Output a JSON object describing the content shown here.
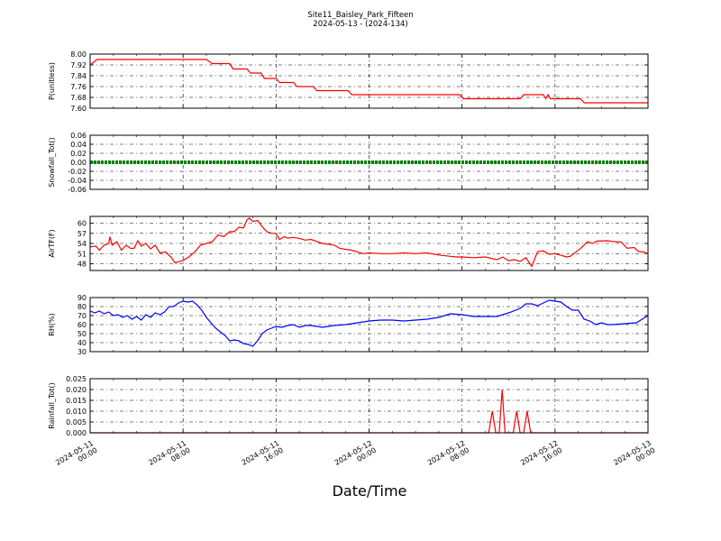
{
  "title_line1": "Site11_Baisley_Park_Fifteen",
  "title_line2": "2024-05-13 - (2024-134)",
  "xlabel": "Date/Time",
  "x_ticks": [
    {
      "t": 0,
      "line1": "2024-05-11",
      "line2": "00:00"
    },
    {
      "t": 8,
      "line1": "2024-05-11",
      "line2": "08:00"
    },
    {
      "t": 16,
      "line1": "2024-05-11",
      "line2": "16:00"
    },
    {
      "t": 24,
      "line1": "2024-05-12",
      "line2": "00:00"
    },
    {
      "t": 32,
      "line1": "2024-05-12",
      "line2": "08:00"
    },
    {
      "t": 40,
      "line1": "2024-05-12",
      "line2": "16:00"
    },
    {
      "t": 48,
      "line1": "2024-05-13",
      "line2": "00:00"
    }
  ],
  "colors": {
    "red": "#ff0000",
    "green": "#008000",
    "blue": "#0000ff"
  },
  "chart_data": [
    {
      "type": "line",
      "ylabel": "P(unitless)",
      "ylim": [
        7.6,
        8.0
      ],
      "yticks": [
        "7.60",
        "7.68",
        "7.76",
        "7.84",
        "7.92",
        "8.00"
      ],
      "series": [
        {
          "color": "#ff0000",
          "points": [
            [
              0,
              7.92
            ],
            [
              0.6,
              7.96
            ],
            [
              4,
              7.96
            ],
            [
              8,
              7.96
            ],
            [
              10,
              7.96
            ],
            [
              10.5,
              7.93
            ],
            [
              12,
              7.93
            ],
            [
              12.3,
              7.89
            ],
            [
              13.5,
              7.89
            ],
            [
              13.8,
              7.86
            ],
            [
              14.7,
              7.86
            ],
            [
              15,
              7.82
            ],
            [
              16,
              7.82
            ],
            [
              16.3,
              7.79
            ],
            [
              17.5,
              7.79
            ],
            [
              17.8,
              7.76
            ],
            [
              19.2,
              7.76
            ],
            [
              19.5,
              7.73
            ],
            [
              22.2,
              7.73
            ],
            [
              22.5,
              7.7
            ],
            [
              27,
              7.7
            ],
            [
              31,
              7.7
            ],
            [
              31.8,
              7.7
            ],
            [
              32.1,
              7.67
            ],
            [
              37,
              7.67
            ],
            [
              37.3,
              7.7
            ],
            [
              39,
              7.7
            ],
            [
              39.2,
              7.67
            ],
            [
              39.4,
              7.7
            ],
            [
              39.6,
              7.67
            ],
            [
              42.2,
              7.67
            ],
            [
              42.5,
              7.64
            ],
            [
              48,
              7.64
            ]
          ]
        }
      ]
    },
    {
      "type": "line",
      "ylabel": "Snowfall_Tot()",
      "ylim": [
        -0.06,
        0.06
      ],
      "yticks": [
        "-0.06",
        "-0.04",
        "-0.02",
        "0.00",
        "0.02",
        "0.04",
        "0.06"
      ],
      "series": [
        {
          "color": "#008000",
          "points": [
            [
              0,
              0
            ],
            [
              48,
              0
            ]
          ]
        }
      ]
    },
    {
      "type": "line",
      "ylabel": "AirTF(F)",
      "ylim": [
        46,
        62
      ],
      "yticks": [
        "48",
        "51",
        "54",
        "57",
        "60"
      ],
      "series": [
        {
          "color": "#ff0000",
          "points": [
            [
              0,
              53
            ],
            [
              0.5,
              53.2
            ],
            [
              0.8,
              52
            ],
            [
              1.2,
              53.5
            ],
            [
              1.6,
              54
            ],
            [
              1.7,
              56
            ],
            [
              1.9,
              53.5
            ],
            [
              2.3,
              54.5
            ],
            [
              2.7,
              52
            ],
            [
              3.1,
              53.5
            ],
            [
              3.5,
              52.5
            ],
            [
              3.8,
              52.6
            ],
            [
              4.1,
              54.8
            ],
            [
              4.4,
              53.2
            ],
            [
              4.8,
              54
            ],
            [
              5.2,
              52.4
            ],
            [
              5.6,
              53.5
            ],
            [
              6,
              51.2
            ],
            [
              6.5,
              51.5
            ],
            [
              7,
              49.8
            ],
            [
              7.3,
              48.3
            ],
            [
              8,
              49
            ],
            [
              8.5,
              50
            ],
            [
              9,
              51.5
            ],
            [
              9.5,
              53.5
            ],
            [
              10,
              54
            ],
            [
              10.5,
              54.5
            ],
            [
              11,
              56.5
            ],
            [
              11.5,
              56
            ],
            [
              12,
              57.5
            ],
            [
              12.4,
              57.5
            ],
            [
              12.8,
              58.8
            ],
            [
              13.2,
              58.6
            ],
            [
              13.5,
              61
            ],
            [
              13.7,
              61.5
            ],
            [
              14,
              60.5
            ],
            [
              14.4,
              60.8
            ],
            [
              14.8,
              59
            ],
            [
              15.2,
              57.5
            ],
            [
              15.6,
              57
            ],
            [
              16,
              57
            ],
            [
              16.3,
              55.2
            ],
            [
              16.7,
              56
            ],
            [
              17,
              55.6
            ],
            [
              17.5,
              55.8
            ],
            [
              18,
              55.5
            ],
            [
              18.5,
              55
            ],
            [
              19,
              55.2
            ],
            [
              19.5,
              54.6
            ],
            [
              20,
              54
            ],
            [
              21,
              53.5
            ],
            [
              21.5,
              52.5
            ],
            [
              22.5,
              52
            ],
            [
              23.5,
              51
            ],
            [
              24,
              51.2
            ],
            [
              25,
              51
            ],
            [
              26,
              51
            ],
            [
              27,
              51.2
            ],
            [
              28,
              51
            ],
            [
              29,
              51.2
            ],
            [
              30,
              50.6
            ],
            [
              31,
              50.2
            ],
            [
              31.5,
              50
            ],
            [
              32,
              50
            ],
            [
              33,
              49.8
            ],
            [
              34,
              50
            ],
            [
              35,
              49.2
            ],
            [
              35.5,
              50
            ],
            [
              36,
              48.9
            ],
            [
              36.5,
              49.2
            ],
            [
              37,
              48.7
            ],
            [
              37.5,
              49.8
            ],
            [
              38,
              47.2
            ],
            [
              38.5,
              51.6
            ],
            [
              39,
              51.8
            ],
            [
              39.5,
              50.8
            ],
            [
              40,
              51
            ],
            [
              40.5,
              50.5
            ],
            [
              41,
              50
            ],
            [
              41.3,
              50.2
            ],
            [
              41.6,
              51
            ],
            [
              42.2,
              52.5
            ],
            [
              42.8,
              54.5
            ],
            [
              43.2,
              54
            ],
            [
              43.6,
              54.7
            ],
            [
              44.5,
              54.8
            ],
            [
              45,
              54.6
            ],
            [
              45.7,
              54.4
            ],
            [
              46.2,
              52.6
            ],
            [
              46.8,
              52.8
            ],
            [
              47.2,
              51.6
            ],
            [
              47.6,
              51.5
            ],
            [
              48,
              51
            ]
          ]
        }
      ]
    },
    {
      "type": "line",
      "ylabel": "RH(%)",
      "ylim": [
        30,
        90
      ],
      "yticks": [
        "30",
        "40",
        "50",
        "60",
        "70",
        "80",
        "90"
      ],
      "series": [
        {
          "color": "#0000ff",
          "points": [
            [
              0,
              75
            ],
            [
              0.4,
              73
            ],
            [
              0.8,
              75
            ],
            [
              1.2,
              72
            ],
            [
              1.6,
              74
            ],
            [
              2,
              70
            ],
            [
              2.4,
              71
            ],
            [
              2.8,
              68
            ],
            [
              3.2,
              70
            ],
            [
              3.6,
              66
            ],
            [
              4,
              69
            ],
            [
              4.4,
              65
            ],
            [
              4.8,
              71
            ],
            [
              5.2,
              68
            ],
            [
              5.6,
              73
            ],
            [
              6,
              71
            ],
            [
              6.4,
              74
            ],
            [
              6.8,
              80
            ],
            [
              7.2,
              80
            ],
            [
              7.6,
              84
            ],
            [
              8,
              86
            ],
            [
              8.4,
              85
            ],
            [
              8.8,
              86
            ],
            [
              9.2,
              82
            ],
            [
              9.6,
              76
            ],
            [
              10,
              68
            ],
            [
              10.4,
              62
            ],
            [
              10.8,
              56
            ],
            [
              11.2,
              52
            ],
            [
              11.6,
              48
            ],
            [
              12,
              42
            ],
            [
              12.4,
              43
            ],
            [
              12.8,
              42
            ],
            [
              13.2,
              39
            ],
            [
              13.6,
              38
            ],
            [
              14,
              36
            ],
            [
              14.4,
              42
            ],
            [
              14.8,
              50
            ],
            [
              15.2,
              54
            ],
            [
              15.6,
              56
            ],
            [
              16,
              58
            ],
            [
              16.5,
              57
            ],
            [
              17,
              59
            ],
            [
              17.5,
              60
            ],
            [
              18,
              57
            ],
            [
              18.5,
              59
            ],
            [
              19,
              59
            ],
            [
              19.5,
              58
            ],
            [
              20,
              57
            ],
            [
              21,
              59
            ],
            [
              22,
              60
            ],
            [
              23,
              62
            ],
            [
              24,
              64
            ],
            [
              25,
              65
            ],
            [
              26,
              65
            ],
            [
              27,
              64
            ],
            [
              28,
              65
            ],
            [
              29,
              66
            ],
            [
              30,
              68
            ],
            [
              31,
              72
            ],
            [
              32,
              71
            ],
            [
              33,
              69
            ],
            [
              34,
              69
            ],
            [
              35,
              69
            ],
            [
              36,
              73
            ],
            [
              37,
              78
            ],
            [
              37.5,
              83
            ],
            [
              38,
              83
            ],
            [
              38.5,
              81
            ],
            [
              39,
              84
            ],
            [
              39.5,
              87
            ],
            [
              40,
              86
            ],
            [
              40.5,
              85
            ],
            [
              41,
              80
            ],
            [
              41.5,
              76
            ],
            [
              42,
              76
            ],
            [
              42.5,
              66
            ],
            [
              43,
              64
            ],
            [
              43.5,
              60
            ],
            [
              44,
              62
            ],
            [
              44.5,
              60
            ],
            [
              45,
              60
            ],
            [
              46,
              61
            ],
            [
              47,
              62
            ],
            [
              48,
              70
            ]
          ]
        }
      ]
    },
    {
      "type": "line",
      "ylabel": "Rainfall_Tot()",
      "ylim": [
        0,
        0.025
      ],
      "yticks": [
        "0.000",
        "0.005",
        "0.010",
        "0.015",
        "0.020",
        "0.025"
      ],
      "series": [
        {
          "color": "#ff0000",
          "points": [
            [
              0,
              0
            ],
            [
              34.3,
              0
            ],
            [
              34.6,
              0.01
            ],
            [
              34.9,
              0
            ],
            [
              35.2,
              0
            ],
            [
              35.45,
              0.02
            ],
            [
              35.7,
              0
            ],
            [
              36.4,
              0
            ],
            [
              36.7,
              0.01
            ],
            [
              37,
              0
            ],
            [
              37.3,
              0
            ],
            [
              37.6,
              0.01
            ],
            [
              37.9,
              0
            ],
            [
              48,
              0
            ]
          ]
        }
      ]
    }
  ]
}
